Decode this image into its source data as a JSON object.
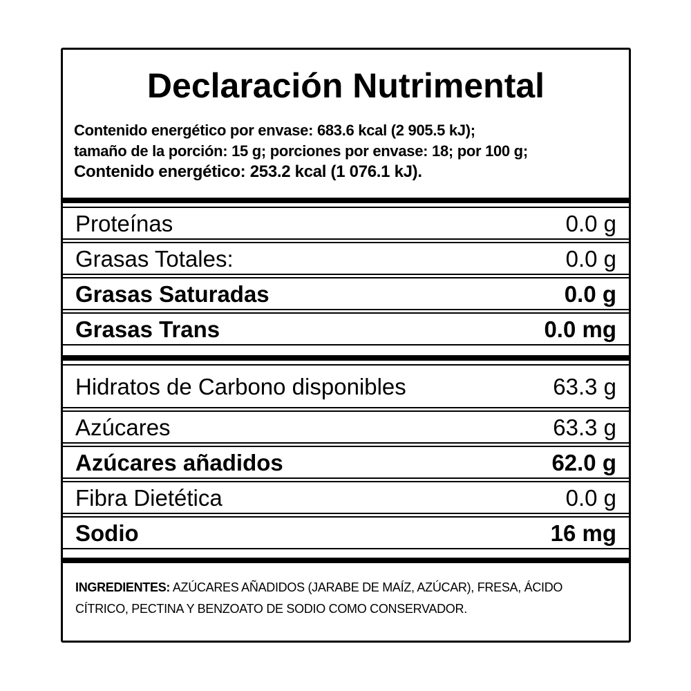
{
  "label": {
    "title": "Declaración Nutrimental",
    "energy": {
      "lines": [
        "Contenido energético por envase: 683.6 kcal (2 905.5 kJ);",
        "tamaño de la porción: 15 g; porciones por envase: 18; por 100 g;",
        "Contenido energético: 253.2 kcal (1 076.1 kJ)."
      ]
    },
    "sections": [
      {
        "rows": [
          {
            "name": "Proteínas",
            "value": "0.0 g",
            "bold": false
          },
          {
            "name": "Grasas Totales:",
            "value": "0.0 g",
            "bold": false
          },
          {
            "name": "Grasas Saturadas",
            "value": "0.0 g",
            "bold": true
          },
          {
            "name": "Grasas Trans",
            "value": "0.0 mg",
            "bold": true
          }
        ]
      },
      {
        "rows": [
          {
            "name": "Hidratos de Carbono disponibles",
            "value": "63.3 g",
            "bold": false
          },
          {
            "name": "Azúcares",
            "value": "63.3 g",
            "bold": false
          },
          {
            "name": "Azúcares añadidos",
            "value": "62.0 g",
            "bold": true
          },
          {
            "name": "Fibra Dietética",
            "value": "0.0 g",
            "bold": false
          },
          {
            "name": "Sodio",
            "value": "16 mg",
            "bold": true
          }
        ]
      }
    ],
    "ingredients": {
      "label": "INGREDIENTES:",
      "text": "AZÚCARES AÑADIDOS (JARABE DE MAÍZ, AZÚCAR), FRESA, ÁCIDO CÍTRICO, PECTINA Y BENZOATO DE SODIO COMO CONSERVADOR."
    },
    "colors": {
      "ink": "#000000",
      "background": "#ffffff"
    }
  }
}
